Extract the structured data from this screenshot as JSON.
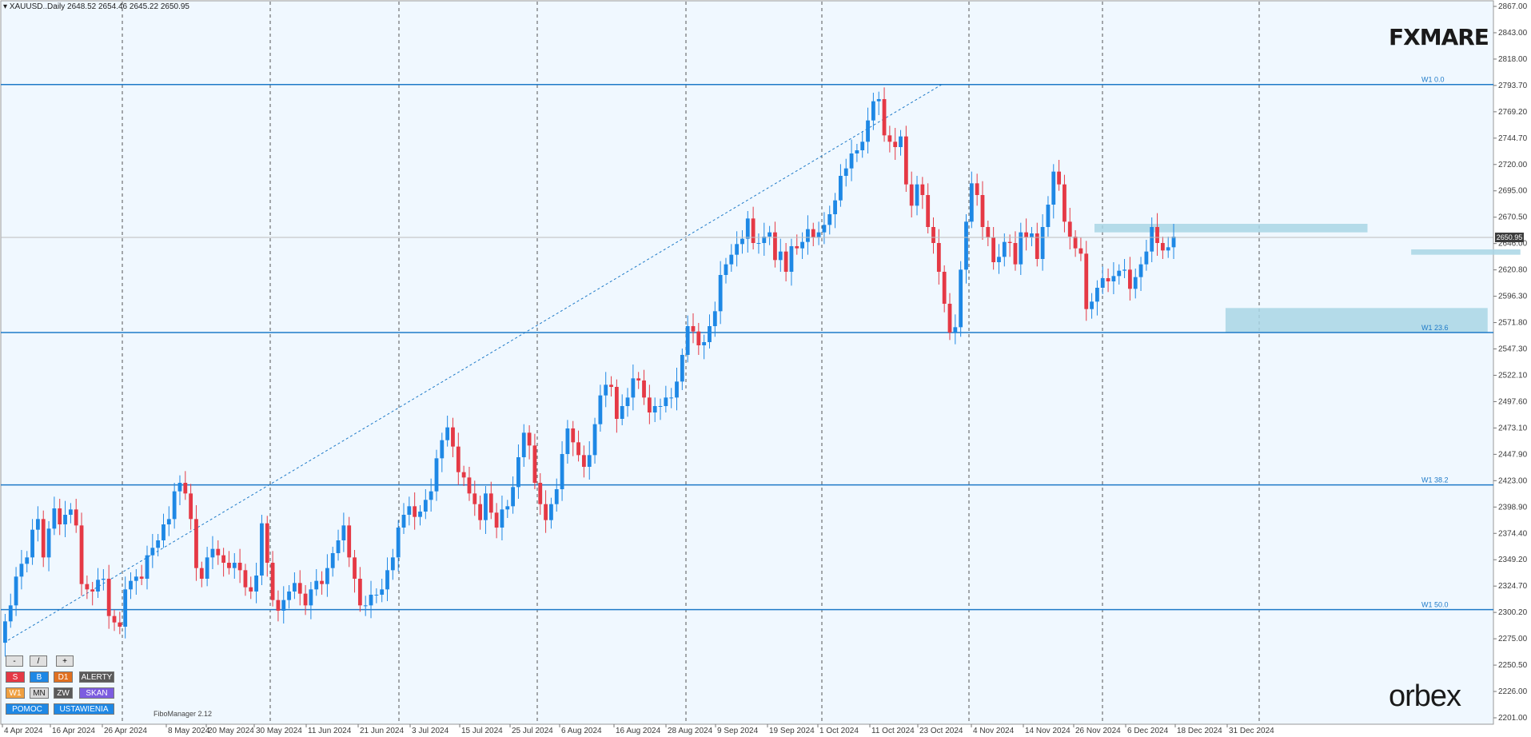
{
  "header": {
    "symbol_line": "XAUUSD..Daily  2648.52 2654.46 2645.22 2650.95"
  },
  "logos": {
    "top": "FXMARE",
    "bottom": "orbex"
  },
  "fibo_manager": "FiboManager 2.12",
  "current_price": "2650.95",
  "panel": {
    "zoom": [
      "-",
      "/",
      "+"
    ],
    "row1": [
      "S",
      "B",
      "D1",
      "ALERTY"
    ],
    "row2": [
      "W1",
      "MN",
      "ZW",
      "SKAN"
    ],
    "row3": [
      "POMOC",
      "USTAWIENIA"
    ]
  },
  "colors": {
    "background": "#f0f8ff",
    "bull": "#1e88e5",
    "bear": "#e53945",
    "fib_line": "#1e7ac8",
    "zone": "#a9d6e5"
  },
  "chart_data": {
    "type": "candlestick",
    "title": "XAUUSD..Daily",
    "ylim": [
      2201.0,
      2867.0
    ],
    "y_ticks": [
      "2867.00",
      "2843.00",
      "2818.00",
      "2793.70",
      "2769.20",
      "2744.70",
      "2720.00",
      "2695.00",
      "2670.50",
      "2646.00",
      "2620.80",
      "2596.30",
      "2571.80",
      "2547.30",
      "2522.10",
      "2497.60",
      "2473.10",
      "2447.90",
      "2423.00",
      "2398.90",
      "2374.40",
      "2349.20",
      "2324.70",
      "2300.20",
      "2275.00",
      "2250.50",
      "2226.00",
      "2201.00"
    ],
    "x_ticks": [
      "4 Apr 2024",
      "16 Apr 2024",
      "26 Apr 2024",
      "8 May 2024",
      "20 May 2024",
      "30 May 2024",
      "11 Jun 2024",
      "21 Jun 2024",
      "3 Jul 2024",
      "15 Jul 2024",
      "25 Jul 2024",
      "6 Aug 2024",
      "16 Aug 2024",
      "28 Aug 2024",
      "9 Sep 2024",
      "19 Sep 2024",
      "1 Oct 2024",
      "11 Oct 2024",
      "23 Oct 2024",
      "4 Nov 2024",
      "14 Nov 2024",
      "26 Nov 2024",
      "6 Dec 2024",
      "18 Dec 2024",
      "31 Dec 2024"
    ],
    "closes": [
      2290,
      2305,
      2332,
      2344,
      2350,
      2376,
      2386,
      2350,
      2377,
      2396,
      2381,
      2390,
      2395,
      2380,
      2325,
      2320,
      2318,
      2329,
      2330,
      2295,
      2289,
      2285,
      2320,
      2328,
      2332,
      2330,
      2352,
      2359,
      2366,
      2381,
      2386,
      2412,
      2420,
      2410,
      2386,
      2340,
      2330,
      2350,
      2358,
      2352,
      2345,
      2340,
      2345,
      2338,
      2322,
      2318,
      2333,
      2382,
      2345,
      2310,
      2300,
      2310,
      2318,
      2326,
      2316,
      2305,
      2320,
      2328,
      2325,
      2340,
      2354,
      2366,
      2380,
      2350,
      2330,
      2305,
      2305,
      2315,
      2315,
      2320,
      2338,
      2350,
      2378,
      2390,
      2398,
      2388,
      2393,
      2404,
      2412,
      2443,
      2460,
      2472,
      2454,
      2430,
      2425,
      2410,
      2400,
      2385,
      2410,
      2392,
      2378,
      2395,
      2398,
      2416,
      2444,
      2467,
      2455,
      2420,
      2400,
      2385,
      2400,
      2414,
      2447,
      2471,
      2458,
      2446,
      2435,
      2446,
      2475,
      2502,
      2512,
      2510,
      2480,
      2492,
      2500,
      2518,
      2516,
      2500,
      2486,
      2492,
      2492,
      2500,
      2500,
      2515,
      2540,
      2567,
      2562,
      2549,
      2552,
      2567,
      2581,
      2615,
      2625,
      2634,
      2644,
      2649,
      2668,
      2645,
      2645,
      2651,
      2655,
      2629,
      2637,
      2618,
      2642,
      2640,
      2646,
      2658,
      2650,
      2655,
      2662,
      2672,
      2685,
      2708,
      2715,
      2729,
      2732,
      2740,
      2760,
      2778,
      2780,
      2746,
      2740,
      2735,
      2745,
      2700,
      2680,
      2700,
      2690,
      2660,
      2645,
      2618,
      2588,
      2561,
      2566,
      2620,
      2665,
      2701,
      2690,
      2660,
      2650,
      2627,
      2632,
      2646,
      2645,
      2625,
      2655,
      2650,
      2654,
      2630,
      2660,
      2681,
      2712,
      2700,
      2665,
      2651,
      2640,
      2635,
      2583,
      2590,
      2603,
      2612,
      2609,
      2614,
      2619,
      2620,
      2602,
      2613,
      2625,
      2637,
      2660,
      2645,
      2638,
      2641,
      2651
    ]
  },
  "fib_levels": [
    {
      "label": "W1 0.0",
      "price": 2793.7
    },
    {
      "label": "W1 23.6",
      "price": 2561.0
    },
    {
      "label": "W1 38.2",
      "price": 2418.0
    },
    {
      "label": "W1 50.0",
      "price": 2301.0
    }
  ],
  "zones": [
    {
      "name": "resistance-zone",
      "from_bar": 200,
      "to_bar": 250,
      "low": 2655,
      "high": 2663
    },
    {
      "name": "support-zone",
      "from_bar": 224,
      "to_bar": 272,
      "low": 2561,
      "high": 2584
    },
    {
      "name": "small-zone",
      "from_bar": 258,
      "to_bar": 278,
      "low": 2634,
      "high": 2639
    }
  ]
}
